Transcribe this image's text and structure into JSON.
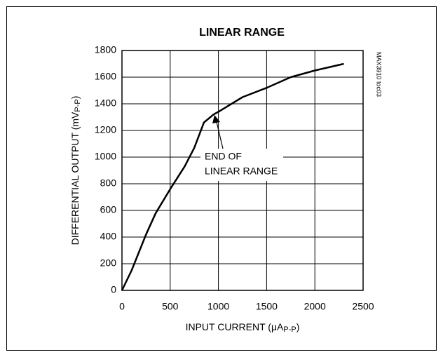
{
  "chart_data": {
    "type": "line",
    "title": "LINEAR RANGE",
    "x_label": [
      "INPUT CURRENT (μA",
      "P-P",
      ")"
    ],
    "y_label": [
      "DIFFERENTIAL OUTPUT (mV",
      "P-P",
      ")"
    ],
    "note": "MAX3910 toc03",
    "annotation": [
      "END OF",
      "LINEAR RANGE"
    ],
    "x": [
      0,
      100,
      250,
      350,
      500,
      650,
      750,
      850,
      950,
      1000,
      1250,
      1500,
      1750,
      2000,
      2300
    ],
    "series": [
      {
        "color": "#000000",
        "values": [
          0,
          150,
          420,
          580,
          760,
          930,
          1070,
          1260,
          1320,
          1340,
          1450,
          1520,
          1600,
          1650,
          1700
        ]
      }
    ],
    "xlim": [
      0,
      2500
    ],
    "xticks": [
      0,
      500,
      1000,
      1500,
      2000,
      2500
    ],
    "ylim": [
      0,
      1800
    ],
    "yticks": [
      0,
      200,
      400,
      600,
      800,
      1000,
      1200,
      1400,
      1600,
      1800
    ],
    "grid": true
  }
}
